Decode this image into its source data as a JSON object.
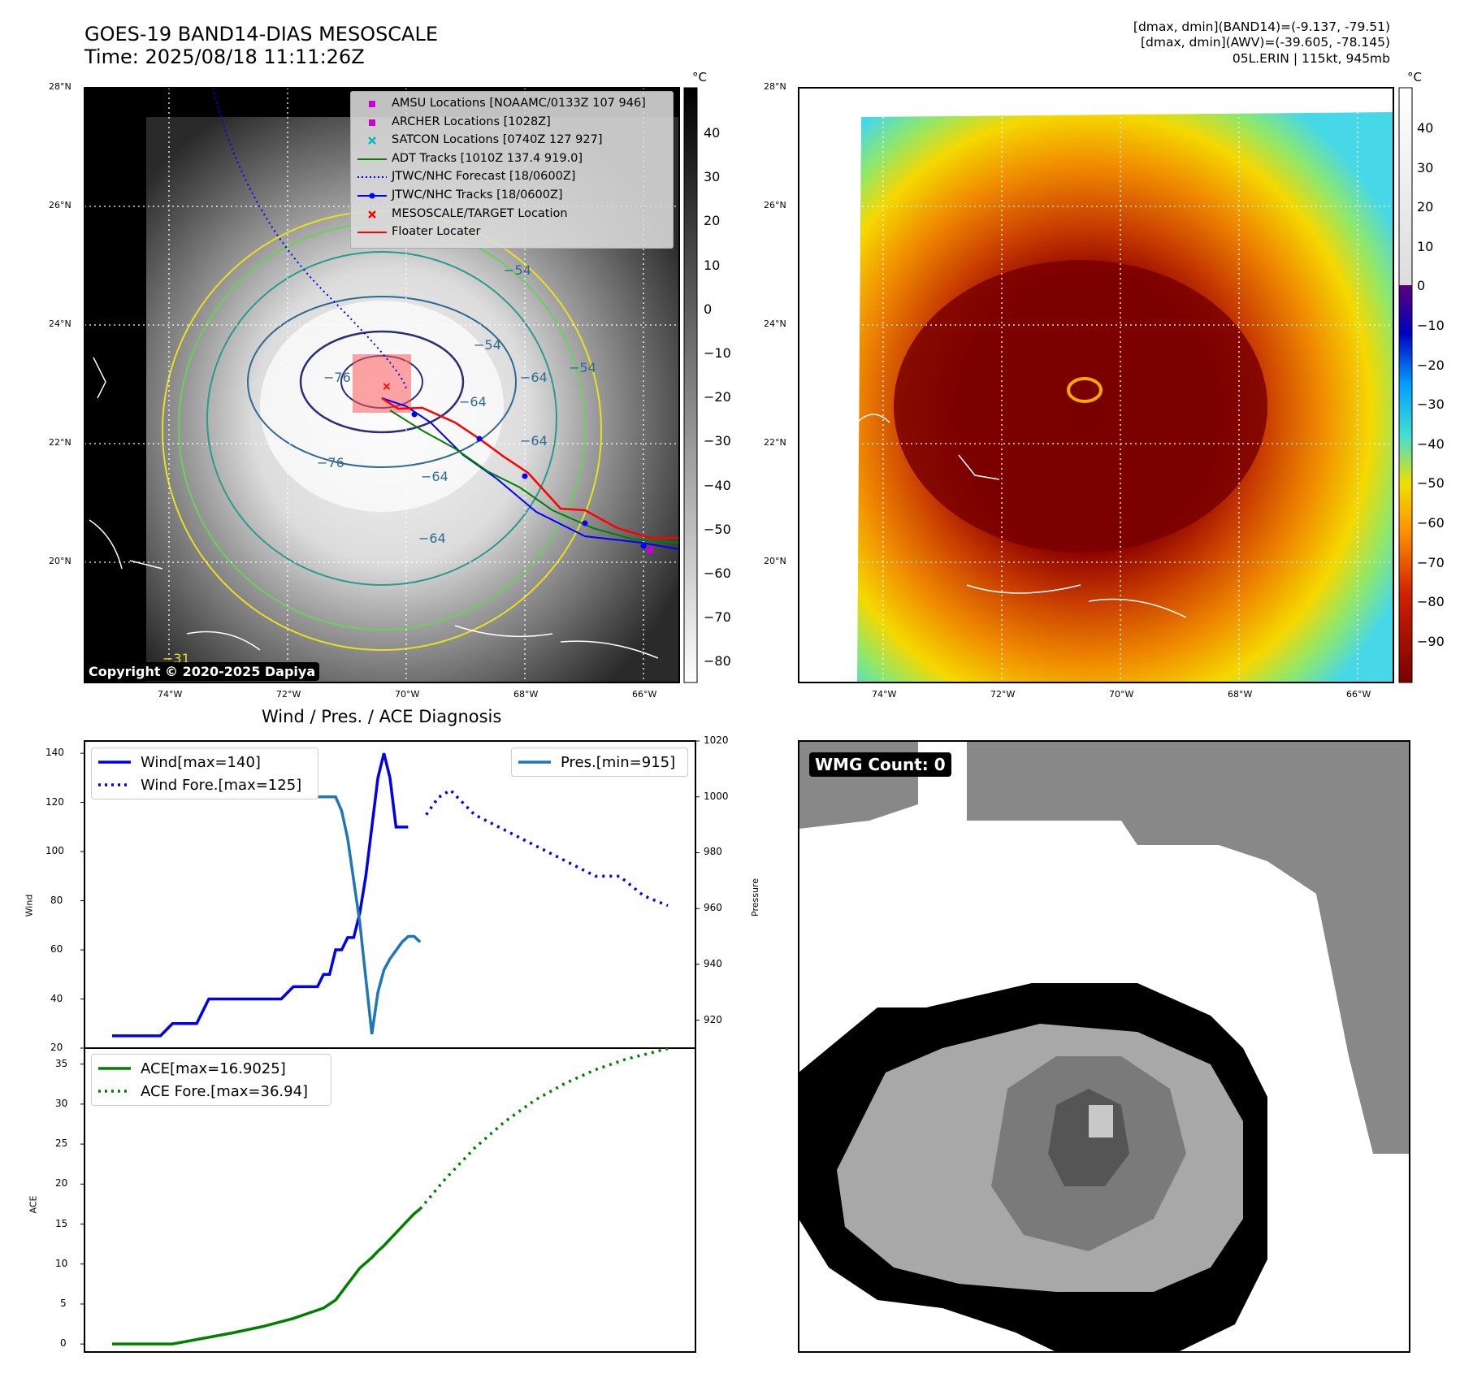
{
  "header": {
    "title_line1": "GOES-19 BAND14-DIAS MESOSCALE",
    "title_line2": "Time: 2025/08/18 11:11:26Z",
    "info_line1": "[dmax, dmin](BAND14)=(-9.137, -79.51)",
    "info_line2": "[dmax, dmin](AWV)=(-39.605, -78.145)",
    "info_line3": "05L.ERIN | 115kt, 945mb"
  },
  "map_panel": {
    "lat_labels": [
      "28°N",
      "26°N",
      "24°N",
      "22°N",
      "20°N"
    ],
    "lon_labels": [
      "74°W",
      "72°W",
      "70°W",
      "68°W",
      "66°W"
    ],
    "copyright": "Copyright © 2020-2025 Dapiya",
    "colorbar_unit": "°C",
    "colorbar_ticks": [
      "40",
      "30",
      "20",
      "10",
      "0",
      "−10",
      "−20",
      "−30",
      "−40",
      "−50",
      "−60",
      "−70",
      "−80"
    ],
    "contour_labels": [
      "−76",
      "−76",
      "−64",
      "−64",
      "−64",
      "−54",
      "−54",
      "−54",
      "−64",
      "−64",
      "−31"
    ],
    "legend": [
      {
        "label": "AMSU Locations [NOAAMC/0133Z 107 946]",
        "marker": "square",
        "color": "#cc00cc"
      },
      {
        "label": "ARCHER Locations [1028Z]",
        "marker": "square",
        "color": "#cc00cc"
      },
      {
        "label": "SATCON Locations [0740Z 127 927]",
        "marker": "x",
        "color": "#00bbbb"
      },
      {
        "label": "ADT Tracks [1010Z 137.4 919.0]",
        "marker": "line",
        "color": "#008000"
      },
      {
        "label": "JTWC/NHC Forecast [18/0600Z]",
        "marker": "dotted",
        "color": "#0000ff"
      },
      {
        "label": "JTWC/NHC Tracks [18/0600Z]",
        "marker": "line-dot",
        "color": "#0000ff"
      },
      {
        "label": "MESOSCALE/TARGET Location",
        "marker": "x",
        "color": "#ff0000"
      },
      {
        "label": "Floater Locater",
        "marker": "line",
        "color": "#ff0000"
      }
    ]
  },
  "awv_panel": {
    "lat_labels": [
      "28°N",
      "26°N",
      "24°N",
      "22°N",
      "20°N"
    ],
    "lon_labels": [
      "74°W",
      "72°W",
      "70°W",
      "68°W",
      "66°W"
    ],
    "colorbar_unit": "°C",
    "colorbar_ticks": [
      "40",
      "30",
      "20",
      "10",
      "0",
      "−10",
      "−20",
      "−30",
      "−40",
      "−50",
      "−60",
      "−70",
      "−80",
      "−90"
    ]
  },
  "wmg_panel": {
    "label": "WMG Count: 0"
  },
  "chart_data": [
    {
      "type": "line",
      "title": "Wind / Pres. / ACE Diagnosis",
      "ylabel": "Wind",
      "ylabel_right": "Pressure",
      "ylim": [
        20,
        145
      ],
      "ylim_right": [
        910,
        1020
      ],
      "yticks": [
        "140",
        "120",
        "100",
        "80",
        "60",
        "40",
        "20"
      ],
      "yticks_right": [
        "1020",
        "1000",
        "980",
        "960",
        "940",
        "920"
      ],
      "legend": [
        "Wind[max=140]",
        "Wind Fore.[max=125]",
        "Pres.[min=915]"
      ],
      "series": [
        {
          "name": "Wind[max=140]",
          "style": "solid",
          "color": "#0000ee",
          "x": [
            0,
            4,
            8,
            12,
            16,
            20,
            24,
            28,
            32,
            36,
            40,
            44,
            48,
            52,
            56,
            60,
            64,
            68,
            70,
            72,
            74,
            76,
            78,
            80,
            82,
            84,
            86,
            88,
            90,
            92,
            94,
            96,
            98
          ],
          "y": [
            25,
            25,
            25,
            25,
            25,
            30,
            30,
            30,
            40,
            40,
            40,
            40,
            40,
            40,
            40,
            45,
            45,
            45,
            50,
            50,
            60,
            60,
            65,
            65,
            75,
            90,
            110,
            130,
            140,
            130,
            110,
            110,
            110
          ]
        },
        {
          "name": "Wind Fore.[max=125]",
          "style": "dotted",
          "color": "#0000ee",
          "x": [
            104,
            108,
            112,
            120,
            128,
            136,
            144,
            152,
            160,
            168,
            176,
            184
          ],
          "y": [
            115,
            122,
            125,
            115,
            110,
            105,
            100,
            95,
            90,
            90,
            82,
            78
          ]
        },
        {
          "name": "Pres.[min=915]",
          "style": "solid",
          "color": "#1f77b4",
          "x": [
            0,
            4,
            8,
            12,
            16,
            20,
            24,
            28,
            32,
            36,
            40,
            44,
            48,
            52,
            56,
            60,
            64,
            68,
            70,
            72,
            74,
            76,
            78,
            80,
            82,
            84,
            86,
            88,
            90,
            92,
            94,
            96,
            98,
            100,
            102
          ],
          "y": [
            1015,
            1015,
            1010,
            1008,
            1008,
            1008,
            1008,
            1007,
            1005,
            1005,
            1007,
            1007,
            1005,
            1005,
            1005,
            1005,
            1000,
            1000,
            1000,
            1000,
            1000,
            995,
            985,
            970,
            955,
            935,
            915,
            930,
            938,
            942,
            945,
            948,
            950,
            950,
            948
          ]
        }
      ]
    },
    {
      "type": "line",
      "ylabel": "ACE",
      "ylim": [
        -1,
        37
      ],
      "yticks": [
        "35",
        "30",
        "25",
        "20",
        "15",
        "10",
        "5",
        "0"
      ],
      "legend": [
        "ACE[max=16.9025]",
        "ACE Fore.[max=36.94]"
      ],
      "series": [
        {
          "name": "ACE[max=16.9025]",
          "style": "solid",
          "color": "#008000",
          "x": [
            0,
            10,
            20,
            30,
            40,
            50,
            60,
            70,
            74,
            78,
            82,
            86,
            88,
            90,
            92,
            94,
            96,
            98,
            100,
            102
          ],
          "y": [
            0,
            0,
            0,
            0.7,
            1.4,
            2.2,
            3.2,
            4.5,
            5.5,
            7.5,
            9.5,
            10.8,
            11.6,
            12.3,
            13.1,
            13.9,
            14.7,
            15.5,
            16.3,
            16.9
          ]
        },
        {
          "name": "ACE Fore.[max=36.94]",
          "style": "dotted",
          "color": "#008000",
          "x": [
            102,
            110,
            120,
            130,
            140,
            150,
            160,
            170,
            184
          ],
          "y": [
            16.9,
            20.5,
            24.5,
            27.8,
            30.5,
            32.6,
            34.3,
            35.6,
            36.94
          ]
        }
      ]
    }
  ]
}
